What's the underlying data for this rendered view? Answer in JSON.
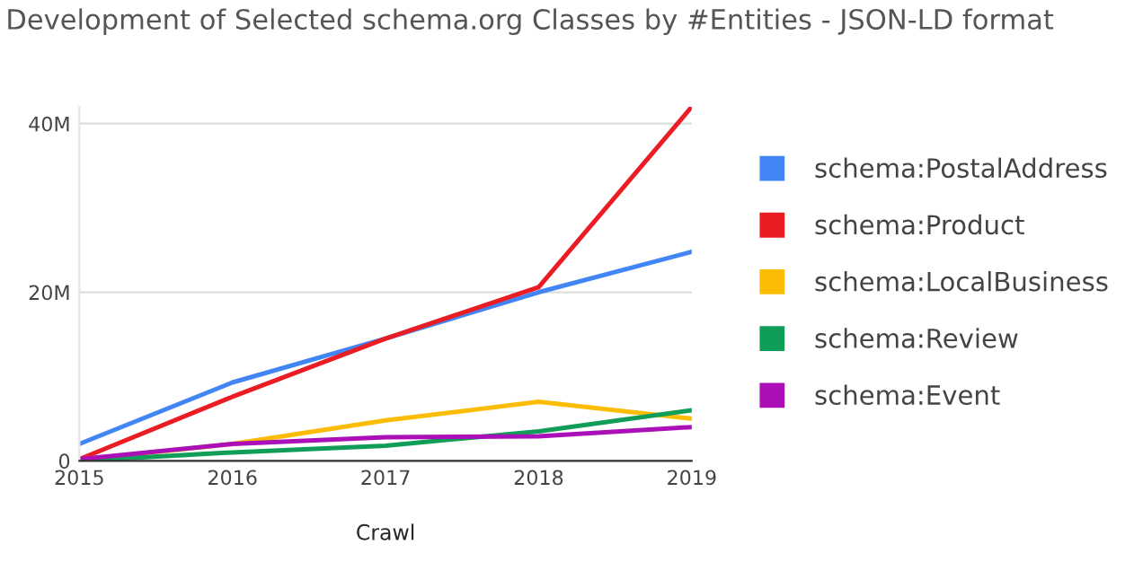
{
  "chart_data": {
    "type": "line",
    "title": "Development of Selected schema.org Classes by #Entities - JSON-LD format",
    "xlabel": "Crawl",
    "x": [
      2015,
      2016,
      2017,
      2018,
      2019
    ],
    "series": [
      {
        "name": "schema:PostalAddress",
        "color": "#4285f4",
        "values": [
          2,
          9.3,
          14.5,
          20,
          24.8
        ]
      },
      {
        "name": "schema:Product",
        "color": "#ea1c24",
        "values": [
          0.2,
          7.6,
          14.5,
          20.6,
          42
        ]
      },
      {
        "name": "schema:LocalBusiness",
        "color": "#fbbc04",
        "values": [
          0.1,
          2,
          4.8,
          7,
          5
        ]
      },
      {
        "name": "schema:Review",
        "color": "#0f9d58",
        "values": [
          0,
          1,
          1.8,
          3.5,
          6
        ]
      },
      {
        "name": "schema:Event",
        "color": "#ab10b8",
        "values": [
          0.2,
          2,
          2.8,
          2.9,
          4
        ]
      }
    ],
    "xlim": [
      2015,
      2019
    ],
    "xticks": [
      2015,
      2016,
      2017,
      2018,
      2019
    ],
    "ylim": [
      0,
      42
    ],
    "yticks": [
      {
        "value": 0,
        "label": "0"
      },
      {
        "value": 20,
        "label": "20M"
      },
      {
        "value": 40,
        "label": "40M"
      }
    ],
    "grid": "y",
    "legend": "right"
  }
}
